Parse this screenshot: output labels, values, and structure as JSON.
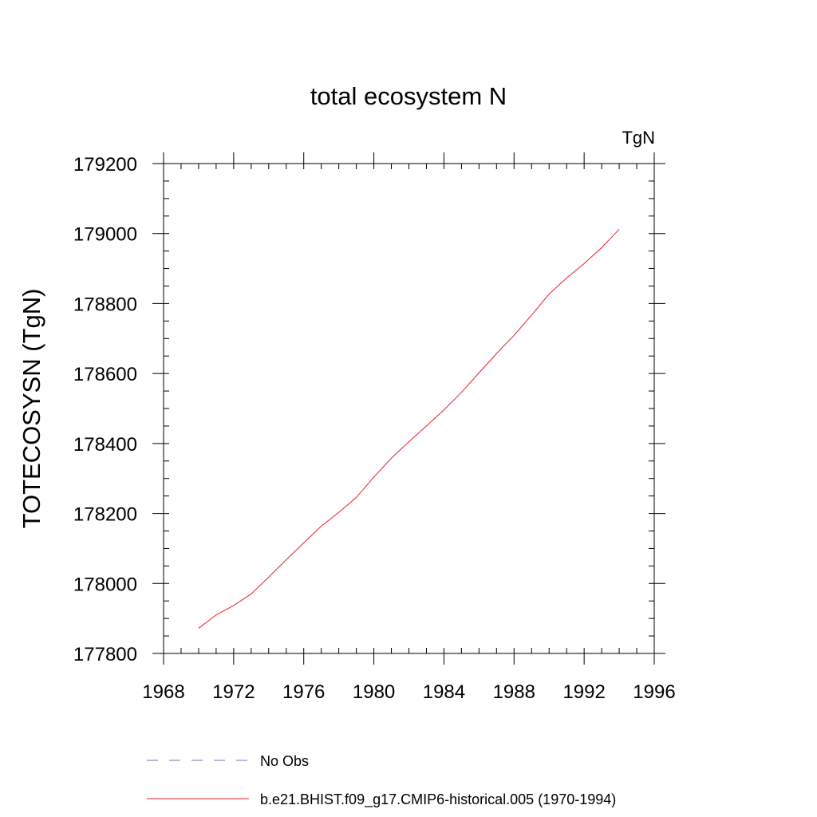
{
  "chart_data": {
    "type": "line",
    "title": "total ecosystem N",
    "units_label": "TgN",
    "xlabel": "",
    "ylabel": "TOTECOSYSN  (TgN)",
    "xlim": [
      1968,
      1996
    ],
    "ylim": [
      177800,
      179200
    ],
    "x_ticks": [
      1968,
      1972,
      1976,
      1980,
      1984,
      1988,
      1992,
      1996
    ],
    "y_ticks": [
      177800,
      178000,
      178200,
      178400,
      178600,
      178800,
      179000,
      179200
    ],
    "x_minor_step": 1,
    "y_minor_step": 50,
    "series": [
      {
        "name": "No Obs",
        "color": "#7b73b5",
        "dash": "dashed",
        "x": [],
        "y": []
      },
      {
        "name": "b.e21.BHIST.f09_g17.CMIP6-historical.005 (1970-1994)",
        "color": "#e8202a",
        "dash": "solid",
        "x": [
          1970,
          1971,
          1972,
          1973,
          1974,
          1975,
          1976,
          1977,
          1978,
          1979,
          1980,
          1981,
          1982,
          1983,
          1984,
          1985,
          1986,
          1987,
          1988,
          1989,
          1990,
          1991,
          1992,
          1993,
          1994
        ],
        "y": [
          177872,
          177910,
          177937,
          177970,
          178018,
          178068,
          178116,
          178164,
          178203,
          178246,
          178304,
          178358,
          178405,
          178450,
          178496,
          178546,
          178602,
          178657,
          178709,
          178767,
          178827,
          178873,
          178914,
          178960,
          179012
        ]
      }
    ]
  }
}
